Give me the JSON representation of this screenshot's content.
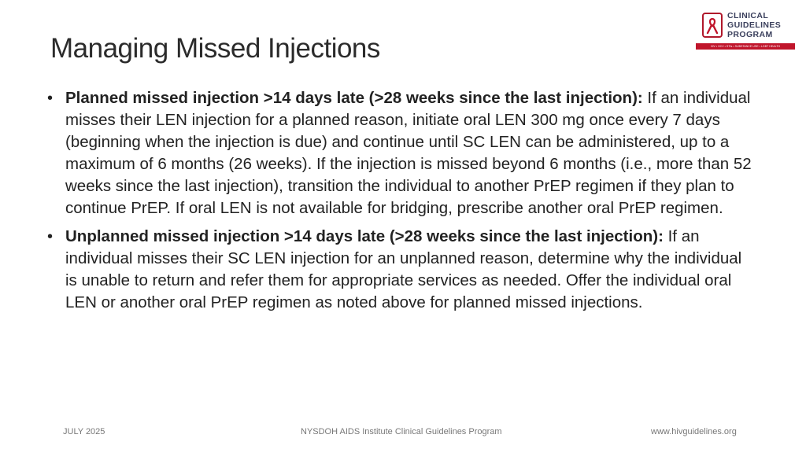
{
  "slide": {
    "title": "Managing Missed Injections",
    "logo": {
      "lines": [
        "CLINICAL",
        "GUIDELINES",
        "PROGRAM"
      ],
      "band": "HIV • HCV • STIs • SUBSTANCE USE • LGBT HEALTH",
      "accent": "#c0152b"
    },
    "bullets": [
      {
        "lead": "Planned missed injection >14 days late (>28 weeks since the last injection):",
        "text": " If an individual misses their LEN injection for a planned reason, initiate oral LEN 300 mg once every 7 days (beginning when the injection is due) and continue until SC LEN can be administered, up to a maximum of 6 months (26 weeks). If the injection is missed beyond 6 months (i.e., more than 52 weeks since the last injection), transition the individual to another PrEP regimen if they plan to continue PrEP. If oral LEN is not available for bridging, prescribe another oral PrEP regimen."
      },
      {
        "lead": "Unplanned missed injection >14 days late (>28 weeks since the last injection):",
        "text": " If an individual misses their SC LEN injection for an unplanned reason, determine why the individual is unable to return and refer them for appropriate services as needed. Offer the individual oral LEN or another oral PrEP regimen as noted above for planned missed injections."
      }
    ],
    "footer": {
      "date": "JULY 2025",
      "org": "NYSDOH AIDS Institute Clinical Guidelines Program",
      "url": "www.hivguidelines.org"
    }
  }
}
